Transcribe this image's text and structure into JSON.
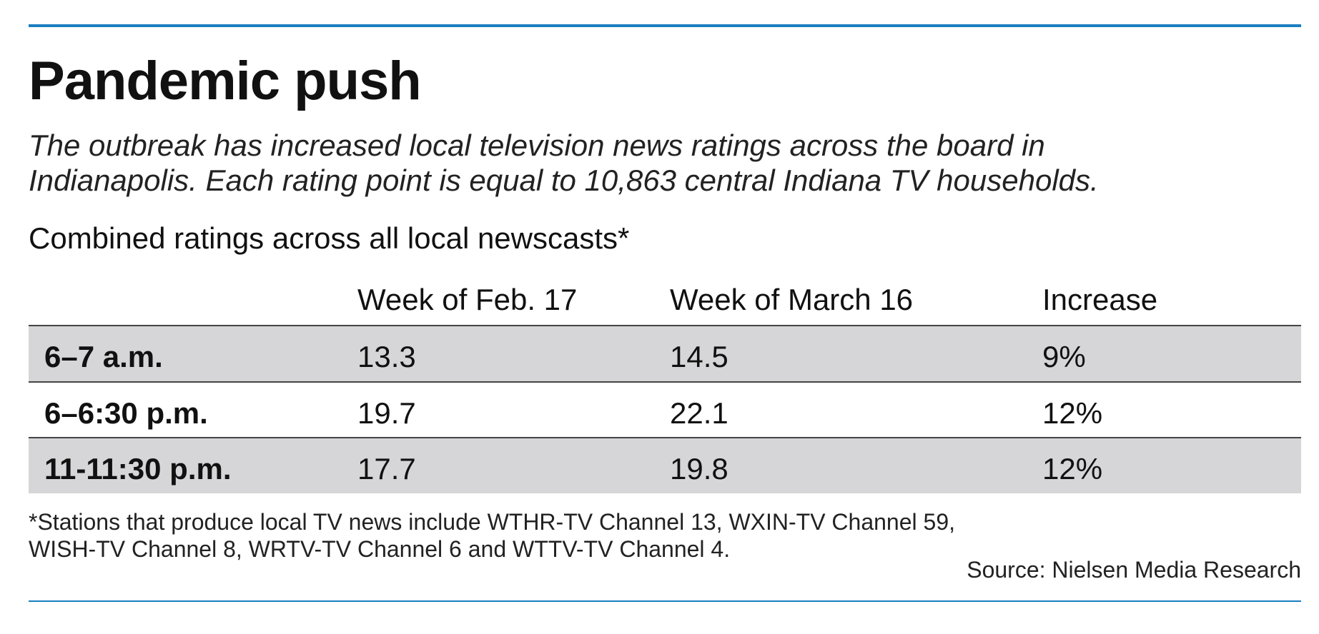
{
  "header": {
    "title": "Pandemic push",
    "subtitle_lines": [
      "The outbreak has increased local television news ratings across the board in",
      "Indianapolis. Each rating point is equal to 10,863 central Indiana TV households."
    ]
  },
  "table": {
    "caption": "Combined ratings across all local newscasts*",
    "columns": [
      "Week of Feb. 17",
      "Week of March 16",
      "Increase"
    ],
    "rows": [
      [
        "6–7 a.m.",
        "13.3",
        "14.5",
        "9%"
      ],
      [
        "6–6:30 p.m.",
        "19.7",
        "22.1",
        "12%"
      ],
      [
        "11-11:30 p.m.",
        "17.7",
        "19.8",
        "12%"
      ]
    ]
  },
  "footer": {
    "note_lines": [
      "*Stations that produce local TV news include WTHR-TV Channel 13, WXIN-TV Channel 59,",
      "WISH-TV Channel 8, WRTV-TV Channel 6 and WTTV-TV Channel 4."
    ],
    "source": "Source: Nielsen Media Research"
  }
}
